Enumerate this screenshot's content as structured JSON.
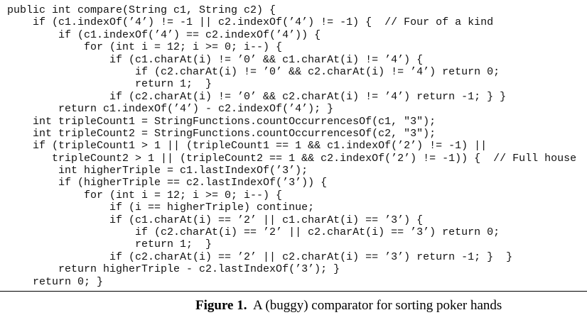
{
  "code": {
    "lines": [
      "public int compare(String c1, String c2) {",
      "    if (c1.indexOf(’4’) != -1 || c2.indexOf(’4’) != -1) {  // Four of a kind",
      "        if (c1.indexOf(’4’) == c2.indexOf(’4’)) {",
      "            for (int i = 12; i >= 0; i--) {",
      "                if (c1.charAt(i) != ’0’ && c1.charAt(i) != ’4’) {",
      "                    if (c2.charAt(i) != ’0’ && c2.charAt(i) != ’4’) return 0;",
      "                    return 1;  }",
      "                if (c2.charAt(i) != ’0’ && c2.charAt(i) != ’4’) return -1; } }",
      "        return c1.indexOf(’4’) - c2.indexOf(’4’); }",
      "    int tripleCount1 = StringFunctions.countOccurrencesOf(c1, \"3\");",
      "    int tripleCount2 = StringFunctions.countOccurrencesOf(c2, \"3\");",
      "    if (tripleCount1 > 1 || (tripleCount1 == 1 && c1.indexOf(’2’) != -1) ||",
      "       tripleCount2 > 1 || (tripleCount2 == 1 && c2.indexOf(’2’) != -1)) {  // Full house",
      "        int higherTriple = c1.lastIndexOf(’3’);",
      "        if (higherTriple == c2.lastIndexOf(’3’)) {",
      "            for (int i = 12; i >= 0; i--) {",
      "                if (i == higherTriple) continue;",
      "                if (c1.charAt(i) == ’2’ || c1.charAt(i) == ’3’) {",
      "                    if (c2.charAt(i) == ’2’ || c2.charAt(i) == ’3’) return 0;",
      "                    return 1;  }",
      "                if (c2.charAt(i) == ’2’ || c2.charAt(i) == ’3’) return -1; }  }",
      "        return higherTriple - c2.lastIndexOf(’3’); }",
      "    return 0; }"
    ]
  },
  "caption": {
    "label": "Figure 1.",
    "text": "A (buggy) comparator for sorting poker hands"
  }
}
